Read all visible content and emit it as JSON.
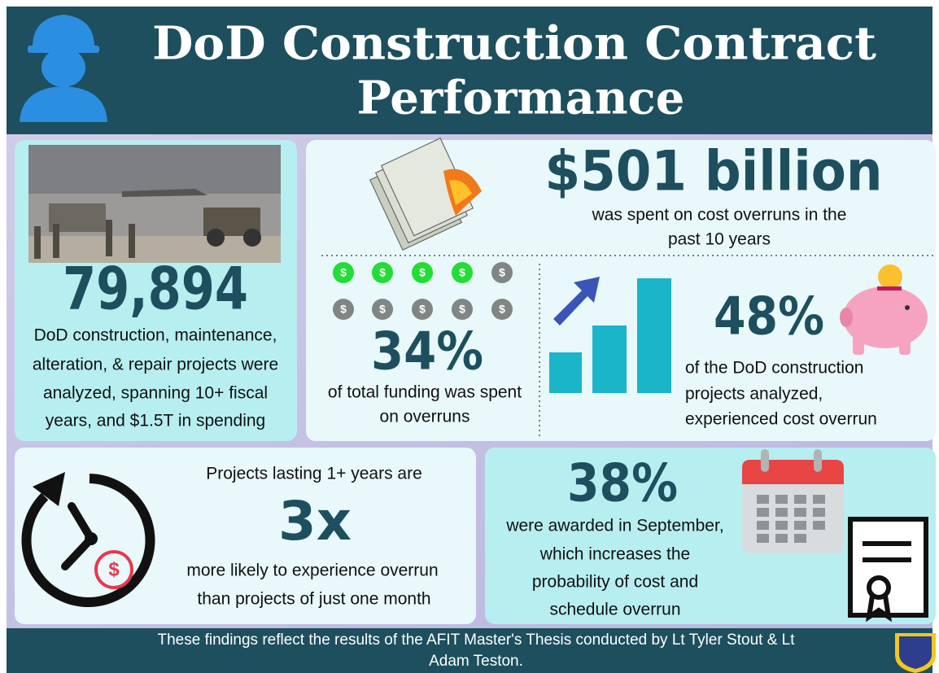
{
  "header": {
    "title_lines": [
      "DoD Construction Contract",
      "Performance"
    ]
  },
  "projects": {
    "number": "79,894",
    "description": [
      "DoD construction, maintenance,",
      "alteration, & repair projects were",
      "analyzed, spanning 10+ fiscal",
      "years, and $1.5T in spending"
    ]
  },
  "overruns": {
    "number": "$501 billion",
    "description": [
      "was spent on cost overruns in the",
      "past 10 years"
    ]
  },
  "coin_symbol": "$",
  "funding": {
    "number": "34%",
    "description": [
      "of total funding was spent",
      "on overruns"
    ]
  },
  "experienced": {
    "number": "48%",
    "description": [
      "of the DoD construction",
      "projects analyzed,",
      "experienced cost overrun"
    ]
  },
  "duration": {
    "intro": "Projects lasting 1+ years are",
    "number": "3x",
    "description": [
      "more likely to experience overrun",
      "than projects of just one month"
    ]
  },
  "september": {
    "number": "38%",
    "description": [
      "were awarded in September,",
      "which increases the",
      "probability of cost and",
      "schedule overrun"
    ]
  },
  "footer": {
    "lines": [
      "These findings reflect the results of the AFIT Master's Thesis conducted by Lt Tyler Stout & Lt",
      "Adam Teston."
    ]
  }
}
